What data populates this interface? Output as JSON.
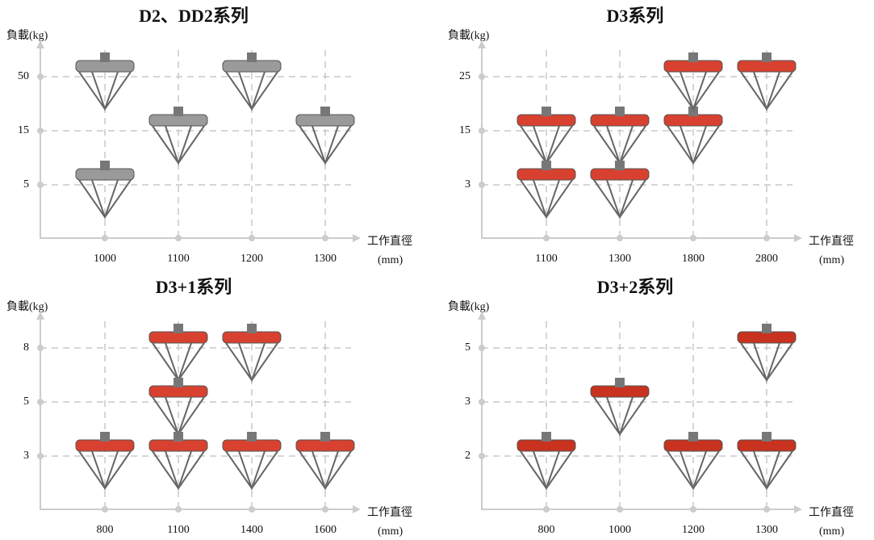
{
  "chart_data": [
    {
      "type": "scatter",
      "title": "D2、DD2系列",
      "ylabel": "負載(kg)",
      "xlabel": "工作直徑",
      "xlabel_unit": "(mm)",
      "xticks": [
        1000,
        1100,
        1200,
        1300
      ],
      "yticks": [
        5,
        15,
        50
      ],
      "color": "#9a9a9a",
      "grid": true,
      "points": [
        {
          "x": 1000,
          "y": 50
        },
        {
          "x": 1000,
          "y": 5
        },
        {
          "x": 1100,
          "y": 15
        },
        {
          "x": 1200,
          "y": 50
        },
        {
          "x": 1300,
          "y": 15
        }
      ]
    },
    {
      "type": "scatter",
      "title": "D3系列",
      "ylabel": "負載(kg)",
      "xlabel": "工作直徑",
      "xlabel_unit": "(mm)",
      "xticks": [
        1100,
        1300,
        1800,
        2800
      ],
      "yticks": [
        3,
        15,
        25
      ],
      "color": "#d8412f",
      "grid": true,
      "points": [
        {
          "x": 1100,
          "y": 15
        },
        {
          "x": 1300,
          "y": 15
        },
        {
          "x": 1800,
          "y": 15
        },
        {
          "x": 1800,
          "y": 25
        },
        {
          "x": 2800,
          "y": 25
        },
        {
          "x": 1100,
          "y": 3
        },
        {
          "x": 1300,
          "y": 3
        }
      ]
    },
    {
      "type": "scatter",
      "title": "D3+1系列",
      "ylabel": "負載(kg)",
      "xlabel": "工作直徑",
      "xlabel_unit": "(mm)",
      "xticks": [
        800,
        1100,
        1400,
        1600
      ],
      "yticks": [
        3,
        5,
        8
      ],
      "color": "#d8412f",
      "grid": true,
      "points": [
        {
          "x": 1100,
          "y": 8
        },
        {
          "x": 1400,
          "y": 8
        },
        {
          "x": 1100,
          "y": 5
        },
        {
          "x": 800,
          "y": 3
        },
        {
          "x": 1100,
          "y": 3
        },
        {
          "x": 1400,
          "y": 3
        },
        {
          "x": 1600,
          "y": 3
        }
      ]
    },
    {
      "type": "scatter",
      "title": "D3+2系列",
      "ylabel": "負載(kg)",
      "xlabel": "工作直徑",
      "xlabel_unit": "(mm)",
      "xticks": [
        800,
        1000,
        1200,
        1300
      ],
      "yticks": [
        2,
        3,
        5
      ],
      "color": "#c8321f",
      "grid": true,
      "points": [
        {
          "x": 1300,
          "y": 5
        },
        {
          "x": 1000,
          "y": 3
        },
        {
          "x": 800,
          "y": 2
        },
        {
          "x": 1200,
          "y": 2
        },
        {
          "x": 1300,
          "y": 2
        }
      ]
    }
  ]
}
